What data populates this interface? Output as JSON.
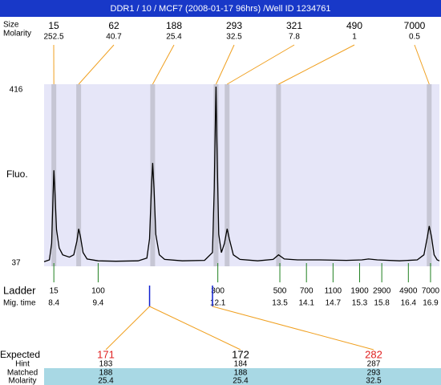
{
  "header": {
    "title": "DDR1 / 10 / MCF7 (2008-01-17 96hrs) /Well ID 1234761"
  },
  "chart_data": {
    "type": "line",
    "y_label": "Fluo.",
    "xlim": [
      8.18,
      17.1
    ],
    "ylim": [
      37,
      416
    ],
    "yticks": [
      37,
      416
    ],
    "trace_color": "#000000",
    "x": [
      8.18,
      8.3,
      8.35,
      8.38,
      8.4,
      8.42,
      8.46,
      8.52,
      8.6,
      8.75,
      8.85,
      8.92,
      8.96,
      9.0,
      9.06,
      9.15,
      9.4,
      9.8,
      10.3,
      10.5,
      10.56,
      10.6,
      10.63,
      10.66,
      10.7,
      10.78,
      10.9,
      11.3,
      11.8,
      11.98,
      12.02,
      12.05,
      12.06,
      12.08,
      12.12,
      12.18,
      12.25,
      12.31,
      12.36,
      12.45,
      12.6,
      13.0,
      13.35,
      13.47,
      13.6,
      13.9,
      14.4,
      15.0,
      15.35,
      15.5,
      15.7,
      16.2,
      16.6,
      16.75,
      16.83,
      16.87,
      16.92,
      16.98,
      17.05,
      17.1
    ],
    "values": [
      40,
      44,
      80,
      180,
      240,
      200,
      110,
      70,
      55,
      50,
      55,
      85,
      112,
      95,
      60,
      46,
      42,
      41,
      42,
      48,
      90,
      200,
      256,
      200,
      100,
      55,
      45,
      42,
      43,
      60,
      200,
      380,
      423,
      300,
      100,
      60,
      80,
      112,
      90,
      55,
      45,
      42,
      45,
      55,
      46,
      44,
      44,
      43,
      44,
      46,
      44,
      42,
      44,
      55,
      95,
      118,
      95,
      55,
      44,
      42
    ],
    "peaks": {
      "size_label": "Size",
      "molarity_label": "Molarity",
      "sizes": [
        15,
        62,
        188,
        293,
        321,
        490,
        7000
      ],
      "molarities": [
        252.5,
        40.7,
        25.4,
        32.5,
        7.8,
        1,
        0.5
      ],
      "times": [
        8.4,
        8.96,
        10.63,
        12.06,
        12.31,
        13.47,
        16.87
      ]
    },
    "ladder": {
      "label": "Ladder",
      "time_label": "Mig. time",
      "sizes": [
        15,
        100,
        300,
        500,
        700,
        1100,
        1900,
        2900,
        4900,
        7000
      ],
      "times": [
        8.4,
        9.4,
        12.1,
        13.5,
        14.1,
        14.7,
        15.3,
        15.8,
        16.4,
        16.9
      ]
    },
    "markers": [
      10.56,
      11.98
    ],
    "expected": {
      "labels": [
        "Expected",
        "Hint",
        "Matched",
        "Molarity"
      ],
      "columns": [
        {
          "expected": 171,
          "hint": 183,
          "matched": 188,
          "molarity": 25.4,
          "color": "#e02020",
          "marker": 0
        },
        {
          "expected": 172,
          "hint": 184,
          "matched": 188,
          "molarity": 25.4,
          "color": "#000000",
          "marker": 0
        },
        {
          "expected": 282,
          "hint": 287,
          "matched": 293,
          "molarity": 32.5,
          "color": "#e02020",
          "marker": 1
        }
      ]
    }
  }
}
